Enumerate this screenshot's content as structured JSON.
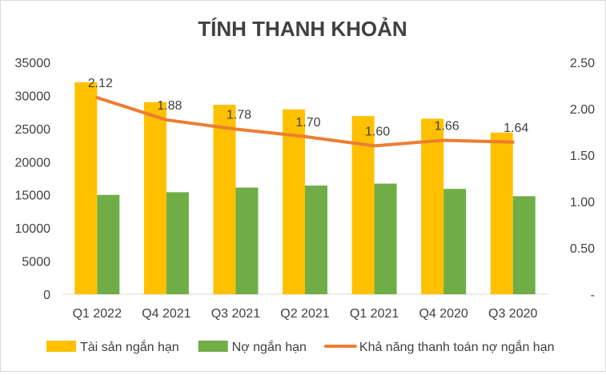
{
  "chart_data": {
    "type": "bar",
    "title": "TÍNH THANH KHOẢN",
    "categories": [
      "Q1 2022",
      "Q4 2021",
      "Q3 2021",
      "Q2 2021",
      "Q1 2021",
      "Q4 2020",
      "Q3 2020"
    ],
    "series": [
      {
        "name": "Tài sản ngắn hạn",
        "type": "bar",
        "axis": "left",
        "color": "#ffc000",
        "values": [
          32000,
          29000,
          28600,
          27900,
          26900,
          26500,
          24400
        ]
      },
      {
        "name": "Nợ ngắn hạn",
        "type": "bar",
        "axis": "left",
        "color": "#70ad47",
        "values": [
          15000,
          15400,
          16100,
          16400,
          16700,
          15900,
          14800
        ]
      },
      {
        "name": "Khả năng thanh toán nợ ngắn hạn",
        "type": "line",
        "axis": "right",
        "color": "#ed7d31",
        "values": [
          2.12,
          1.88,
          1.78,
          1.7,
          1.6,
          1.66,
          1.64
        ],
        "labels": [
          "2.12",
          "1.88",
          "1.78",
          "1.70",
          "1.60",
          "1.66",
          "1.64"
        ]
      }
    ],
    "y_left": {
      "ylim": [
        0,
        35000
      ],
      "ticks": [
        "0",
        "5000",
        "10000",
        "15000",
        "20000",
        "25000",
        "30000",
        "35000"
      ]
    },
    "y_right": {
      "ylim": [
        0,
        2.5
      ],
      "ticks": [
        "-",
        "0.50",
        "1.00",
        "1.50",
        "2.00",
        "2.50"
      ]
    },
    "grid": false,
    "legend_position": "bottom"
  }
}
